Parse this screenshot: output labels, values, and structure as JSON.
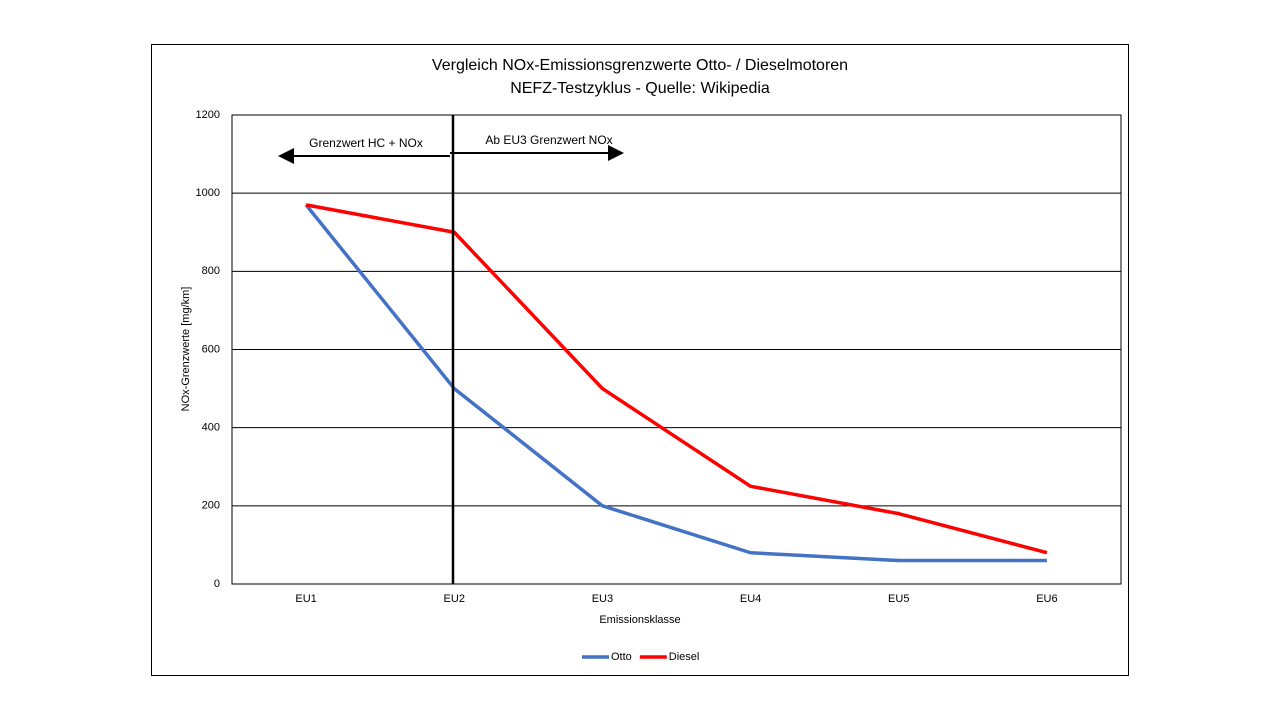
{
  "chart_data": {
    "type": "line",
    "title": "Vergleich NOx-Emissionsgrenzwerte Otto- / Dieselmotoren",
    "subtitle": "NEFZ-Testzyklus - Quelle: Wikipedia",
    "x_label": "Emissionsklasse",
    "y_label": "NOx-Grenzwerte  [mg/km]",
    "annotations": [
      "Grenzwert HC + NOx",
      "Ab EU3  Grenzwert NOx"
    ],
    "categories": [
      "EU1",
      "EU2",
      "EU3",
      "EU4",
      "EU5",
      "EU6"
    ],
    "series": [
      {
        "name": "Otto",
        "color": "#4472c4",
        "values": [
          970,
          500,
          200,
          80,
          60,
          60
        ]
      },
      {
        "name": "Diesel",
        "color": "#ff0000",
        "values": [
          970,
          900,
          500,
          250,
          180,
          80
        ]
      }
    ],
    "ylim": [
      0,
      1200
    ],
    "yticks": [
      0,
      200,
      400,
      600,
      800,
      1000,
      1200
    ],
    "grid": true,
    "legend": "bottom"
  }
}
